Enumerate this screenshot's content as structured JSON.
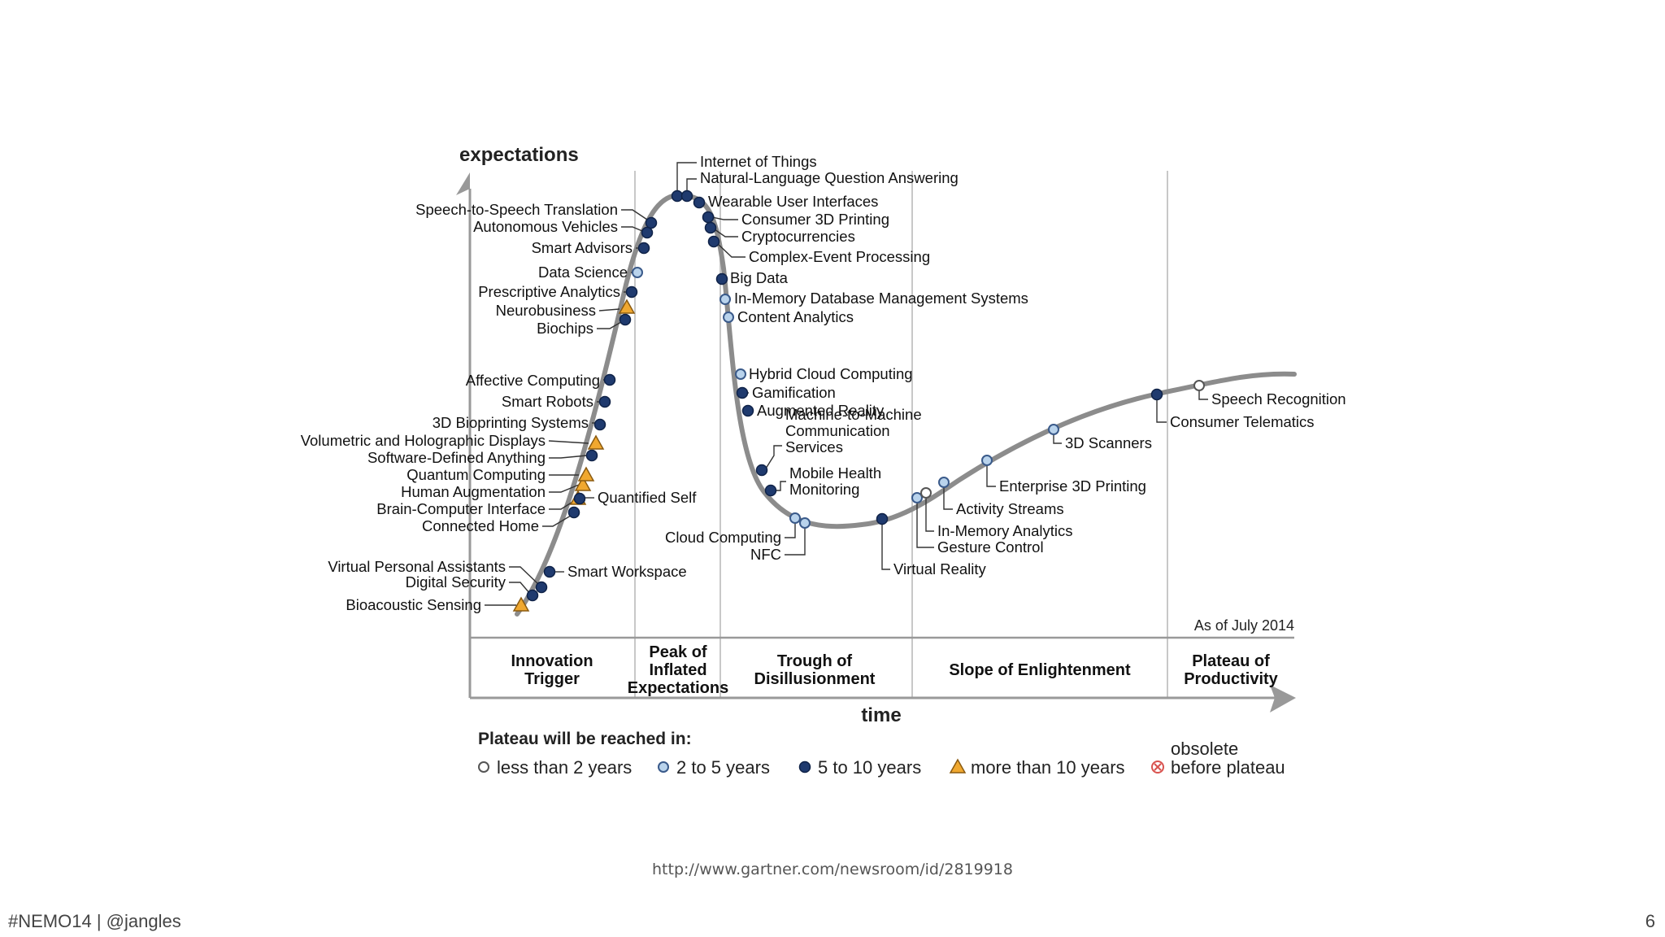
{
  "chart": {
    "y_axis_label": "expectations",
    "x_axis_label": "time",
    "as_of": "As of July 2014",
    "phases": [
      "Innovation Trigger",
      "Peak of Inflated Expectations",
      "Trough of Disillusionment",
      "Slope of Enlightenment",
      "Plateau of Productivity"
    ],
    "phase_lines": [
      [
        "Innovation",
        "Trigger"
      ],
      [
        "Peak of",
        "Inflated",
        "Expectations"
      ],
      [
        "Trough of",
        "Disillusionment"
      ],
      [
        "Slope of Enlightenment"
      ],
      [
        "Plateau of",
        "Productivity"
      ]
    ],
    "legend_title": "Plateau will be reached in:",
    "legend": [
      {
        "key": "lt2",
        "label": "less than 2 years",
        "marker": "circle-white"
      },
      {
        "key": "2to5",
        "label": "2 to 5 years",
        "marker": "circle-lightblue"
      },
      {
        "key": "5to10",
        "label": "5 to 10 years",
        "marker": "circle-navy"
      },
      {
        "key": "gt10",
        "label": "more than 10 years",
        "marker": "triangle-orange"
      },
      {
        "key": "obsolete",
        "label": "obsolete before plateau",
        "label_lines": [
          "obsolete",
          "before plateau"
        ],
        "marker": "circle-crossed-red"
      }
    ],
    "colors": {
      "curve": "#8c8c8c",
      "navy": "#1f3a6e",
      "lightblue": "#b9d3ec",
      "orange": "#f0a830",
      "obsolete": "#d9534f",
      "axis": "#999999"
    },
    "technologies": [
      {
        "name": "Bioacoustic Sensing",
        "status": "gt10"
      },
      {
        "name": "Digital Security",
        "status": "5to10"
      },
      {
        "name": "Virtual Personal Assistants",
        "status": "5to10"
      },
      {
        "name": "Smart Workspace",
        "status": "5to10"
      },
      {
        "name": "Connected Home",
        "status": "5to10"
      },
      {
        "name": "Brain-Computer Interface",
        "status": "gt10"
      },
      {
        "name": "Quantified Self",
        "status": "5to10"
      },
      {
        "name": "Human Augmentation",
        "status": "gt10"
      },
      {
        "name": "Quantum Computing",
        "status": "gt10"
      },
      {
        "name": "Software-Defined Anything",
        "status": "5to10"
      },
      {
        "name": "Volumetric and Holographic Displays",
        "status": "gt10"
      },
      {
        "name": "3D Bioprinting Systems",
        "status": "5to10"
      },
      {
        "name": "Smart Robots",
        "status": "5to10"
      },
      {
        "name": "Affective  Computing",
        "status": "5to10"
      },
      {
        "name": "Biochips",
        "status": "5to10"
      },
      {
        "name": "Neurobusiness",
        "status": "gt10"
      },
      {
        "name": "Prescriptive Analytics",
        "status": "5to10"
      },
      {
        "name": "Data Science",
        "status": "2to5"
      },
      {
        "name": "Smart Advisors",
        "status": "5to10"
      },
      {
        "name": "Autonomous Vehicles",
        "status": "5to10"
      },
      {
        "name": "Speech-to-Speech Translation",
        "status": "5to10"
      },
      {
        "name": "Internet of Things",
        "status": "5to10"
      },
      {
        "name": "Natural-Language Question Answering",
        "status": "5to10"
      },
      {
        "name": "Wearable User Interfaces",
        "status": "5to10"
      },
      {
        "name": "Consumer 3D Printing",
        "status": "5to10"
      },
      {
        "name": "Cryptocurrencies",
        "status": "5to10"
      },
      {
        "name": "Complex-Event Processing",
        "status": "5to10"
      },
      {
        "name": "Big Data",
        "status": "5to10"
      },
      {
        "name": "In-Memory Database Management Systems",
        "status": "2to5"
      },
      {
        "name": "Content Analytics",
        "status": "2to5"
      },
      {
        "name": "Hybrid Cloud Computing",
        "status": "2to5"
      },
      {
        "name": "Gamification",
        "status": "5to10"
      },
      {
        "name": "Augmented Reality",
        "status": "5to10"
      },
      {
        "name": "Machine-to-Machine Communication Services",
        "status": "5to10",
        "label_lines": [
          "Machine-to-Machine",
          "Communication",
          "Services"
        ]
      },
      {
        "name": "Mobile Health Monitoring",
        "status": "5to10",
        "label_lines": [
          "Mobile Health",
          "Monitoring"
        ]
      },
      {
        "name": "Cloud Computing",
        "status": "2to5"
      },
      {
        "name": "NFC",
        "status": "2to5"
      },
      {
        "name": "Virtual Reality",
        "status": "5to10"
      },
      {
        "name": "Gesture Control",
        "status": "2to5"
      },
      {
        "name": "In-Memory Analytics",
        "status": "lt2"
      },
      {
        "name": "Activity  Streams",
        "status": "2to5"
      },
      {
        "name": "Enterprise 3D Printing",
        "status": "2to5"
      },
      {
        "name": "3D Scanners",
        "status": "2to5"
      },
      {
        "name": "Consumer Telematics",
        "status": "5to10"
      },
      {
        "name": "Speech Recognition",
        "status": "lt2"
      }
    ]
  },
  "source_url": "http://www.gartner.com/newsroom/id/2819918",
  "footer": {
    "hashtag": "#NEMO14 | @jangles",
    "page_number": "6"
  }
}
